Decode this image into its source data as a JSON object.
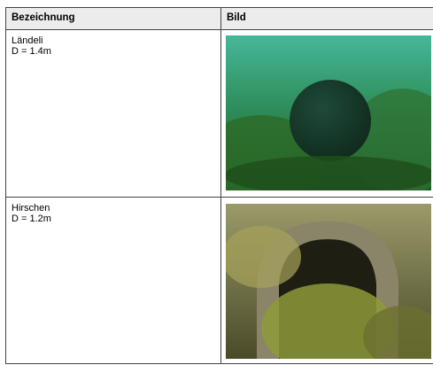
{
  "table": {
    "header": [
      "Bezeichnung",
      "Bild"
    ],
    "rows": [
      [
        "Ländeli",
        "D = 1.4m"
      ],
      [
        "Hirschen",
        "D = 1.2m"
      ]
    ]
  }
}
